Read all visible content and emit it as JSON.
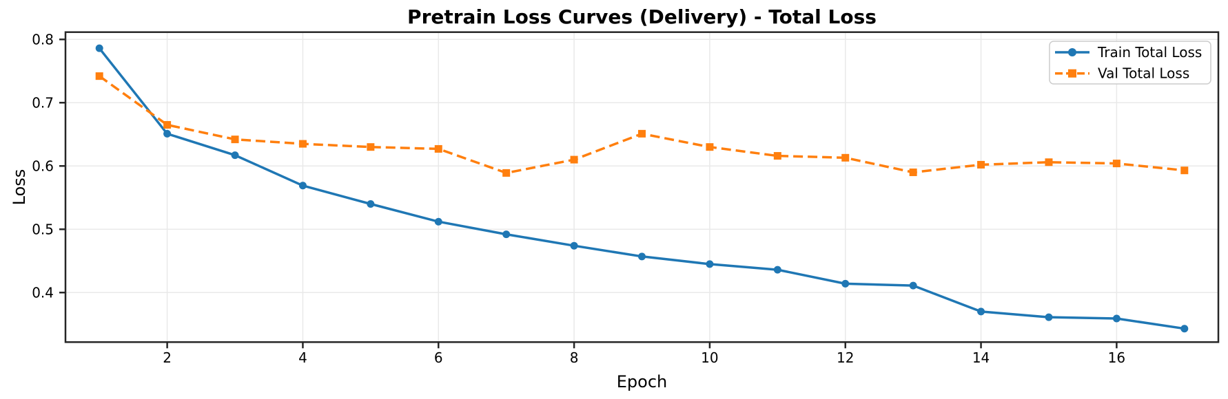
{
  "chart_data": {
    "type": "line",
    "title": "Pretrain Loss Curves (Delivery) - Total Loss",
    "xlabel": "Epoch",
    "ylabel": "Loss",
    "x": [
      1,
      2,
      3,
      4,
      5,
      6,
      7,
      8,
      9,
      10,
      11,
      12,
      13,
      14,
      15,
      16,
      17
    ],
    "series": [
      {
        "name": "Train Total Loss",
        "color": "#1f77b4",
        "marker": "circle",
        "line_style": "solid",
        "values": [
          0.786,
          0.651,
          0.617,
          0.569,
          0.54,
          0.512,
          0.492,
          0.474,
          0.457,
          0.445,
          0.436,
          0.414,
          0.411,
          0.37,
          0.361,
          0.359,
          0.343
        ]
      },
      {
        "name": "Val Total Loss",
        "color": "#ff7f0e",
        "marker": "square",
        "line_style": "dashed",
        "values": [
          0.742,
          0.665,
          0.642,
          0.635,
          0.63,
          0.627,
          0.589,
          0.61,
          0.651,
          0.63,
          0.616,
          0.613,
          0.59,
          0.602,
          0.606,
          0.604,
          0.593
        ]
      }
    ],
    "xticks": [
      2,
      4,
      6,
      8,
      10,
      12,
      14,
      16
    ],
    "yticks": [
      0.4,
      0.5,
      0.6,
      0.7,
      0.8
    ],
    "xlim": [
      0.5,
      17.5
    ],
    "ylim": [
      0.3217,
      0.8115
    ],
    "grid": true,
    "legend_position": "upper right"
  },
  "colors": {
    "grid": "#e9e9e9",
    "spine": "#262626",
    "text": "#000000",
    "legend_border": "#cccccc",
    "background": "#ffffff"
  }
}
